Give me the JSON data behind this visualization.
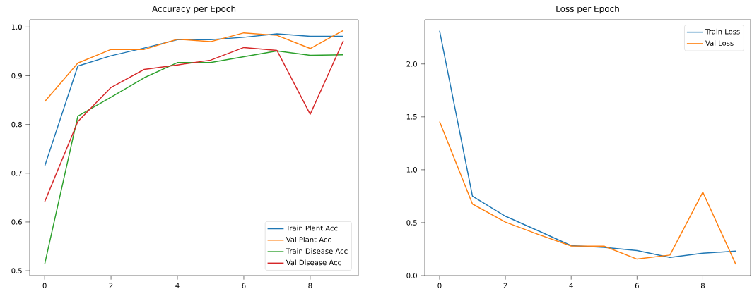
{
  "chart_data": [
    {
      "type": "line",
      "title": "Accuracy per Epoch",
      "x": [
        0,
        1,
        2,
        3,
        4,
        5,
        6,
        7,
        8,
        9
      ],
      "series": [
        {
          "name": "Train Plant Acc",
          "color": "#1f77b4",
          "values": [
            0.714,
            0.92,
            0.941,
            0.957,
            0.974,
            0.974,
            0.979,
            0.986,
            0.981,
            0.981
          ]
        },
        {
          "name": "Val Plant Acc",
          "color": "#ff7f0e",
          "values": [
            0.847,
            0.926,
            0.954,
            0.954,
            0.975,
            0.97,
            0.988,
            0.983,
            0.956,
            0.993
          ]
        },
        {
          "name": "Train Disease Acc",
          "color": "#2ca02c",
          "values": [
            0.513,
            0.817,
            0.856,
            0.896,
            0.927,
            0.927,
            0.939,
            0.951,
            0.942,
            0.943
          ]
        },
        {
          "name": "Val Disease Acc",
          "color": "#d62728",
          "values": [
            0.641,
            0.806,
            0.876,
            0.913,
            0.922,
            0.932,
            0.958,
            0.952,
            0.821,
            0.972
          ]
        }
      ],
      "xlim": [
        -0.45,
        9.45
      ],
      "ylim": [
        0.49,
        1.015
      ],
      "xticks": [
        0,
        2,
        4,
        6,
        8
      ],
      "yticks": [
        {
          "value": 0.5,
          "label": "0.5"
        },
        {
          "value": 0.6,
          "label": "0.6"
        },
        {
          "value": 0.7,
          "label": "0.7"
        },
        {
          "value": 0.8,
          "label": "0.8"
        },
        {
          "value": 0.9,
          "label": "0.9"
        },
        {
          "value": 1.0,
          "label": "1.0"
        }
      ],
      "legend": "bottom right",
      "grid": false,
      "marker": "none",
      "line_style": "solid"
    },
    {
      "type": "line",
      "title": "Loss per Epoch",
      "x": [
        0,
        1,
        2,
        3,
        4,
        5,
        6,
        7,
        8,
        9
      ],
      "series": [
        {
          "name": "Train Loss",
          "color": "#1f77b4",
          "values": [
            2.314,
            0.75,
            0.561,
            0.423,
            0.283,
            0.267,
            0.236,
            0.171,
            0.211,
            0.231
          ]
        },
        {
          "name": "Val Loss",
          "color": "#ff7f0e",
          "values": [
            1.455,
            0.676,
            0.505,
            0.389,
            0.28,
            0.278,
            0.156,
            0.194,
            0.788,
            0.107
          ]
        }
      ],
      "xlim": [
        -0.45,
        9.45
      ],
      "ylim": [
        0,
        2.418
      ],
      "xticks": [
        0,
        2,
        4,
        6,
        8
      ],
      "yticks": [
        {
          "value": 0,
          "label": "0.0"
        },
        {
          "value": 0.5,
          "label": "0.5"
        },
        {
          "value": 1.0,
          "label": "1.0"
        },
        {
          "value": 1.5,
          "label": "1.5"
        },
        {
          "value": 2.0,
          "label": "2.0"
        }
      ],
      "legend": "top right",
      "grid": false,
      "marker": "none",
      "line_style": "solid"
    }
  ]
}
